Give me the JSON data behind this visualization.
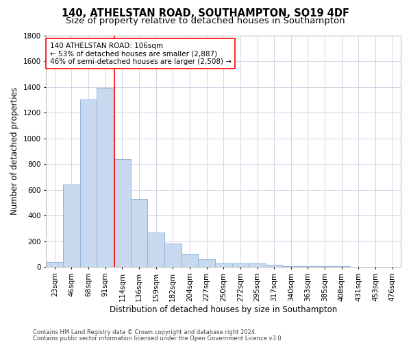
{
  "title1": "140, ATHELSTAN ROAD, SOUTHAMPTON, SO19 4DF",
  "title2": "Size of property relative to detached houses in Southampton",
  "xlabel": "Distribution of detached houses by size in Southampton",
  "ylabel": "Number of detached properties",
  "categories": [
    "23sqm",
    "46sqm",
    "68sqm",
    "91sqm",
    "114sqm",
    "136sqm",
    "159sqm",
    "182sqm",
    "204sqm",
    "227sqm",
    "250sqm",
    "272sqm",
    "295sqm",
    "317sqm",
    "340sqm",
    "363sqm",
    "385sqm",
    "408sqm",
    "431sqm",
    "453sqm",
    "476sqm"
  ],
  "values": [
    40,
    640,
    1300,
    1390,
    840,
    530,
    270,
    180,
    100,
    60,
    30,
    28,
    28,
    15,
    5,
    5,
    5,
    5,
    3,
    3,
    3
  ],
  "bar_color": "#c8d8ee",
  "bar_edge_color": "#90b4d8",
  "grid_color": "#c8cfe0",
  "vline_x_index": 3.55,
  "vline_color": "red",
  "annotation_line1": "140 ATHELSTAN ROAD: 106sqm",
  "annotation_line2": "← 53% of detached houses are smaller (2,887)",
  "annotation_line3": "46% of semi-detached houses are larger (2,508) →",
  "annotation_box_color": "white",
  "annotation_box_edge": "red",
  "ylim": [
    0,
    1800
  ],
  "yticks": [
    0,
    200,
    400,
    600,
    800,
    1000,
    1200,
    1400,
    1600,
    1800
  ],
  "footer1": "Contains HM Land Registry data © Crown copyright and database right 2024.",
  "footer2": "Contains public sector information licensed under the Open Government Licence v3.0.",
  "title1_fontsize": 10.5,
  "title2_fontsize": 9.5,
  "tick_fontsize": 7.5,
  "ylabel_fontsize": 8.5,
  "xlabel_fontsize": 8.5,
  "annotation_fontsize": 7.5,
  "footer_fontsize": 6.0
}
